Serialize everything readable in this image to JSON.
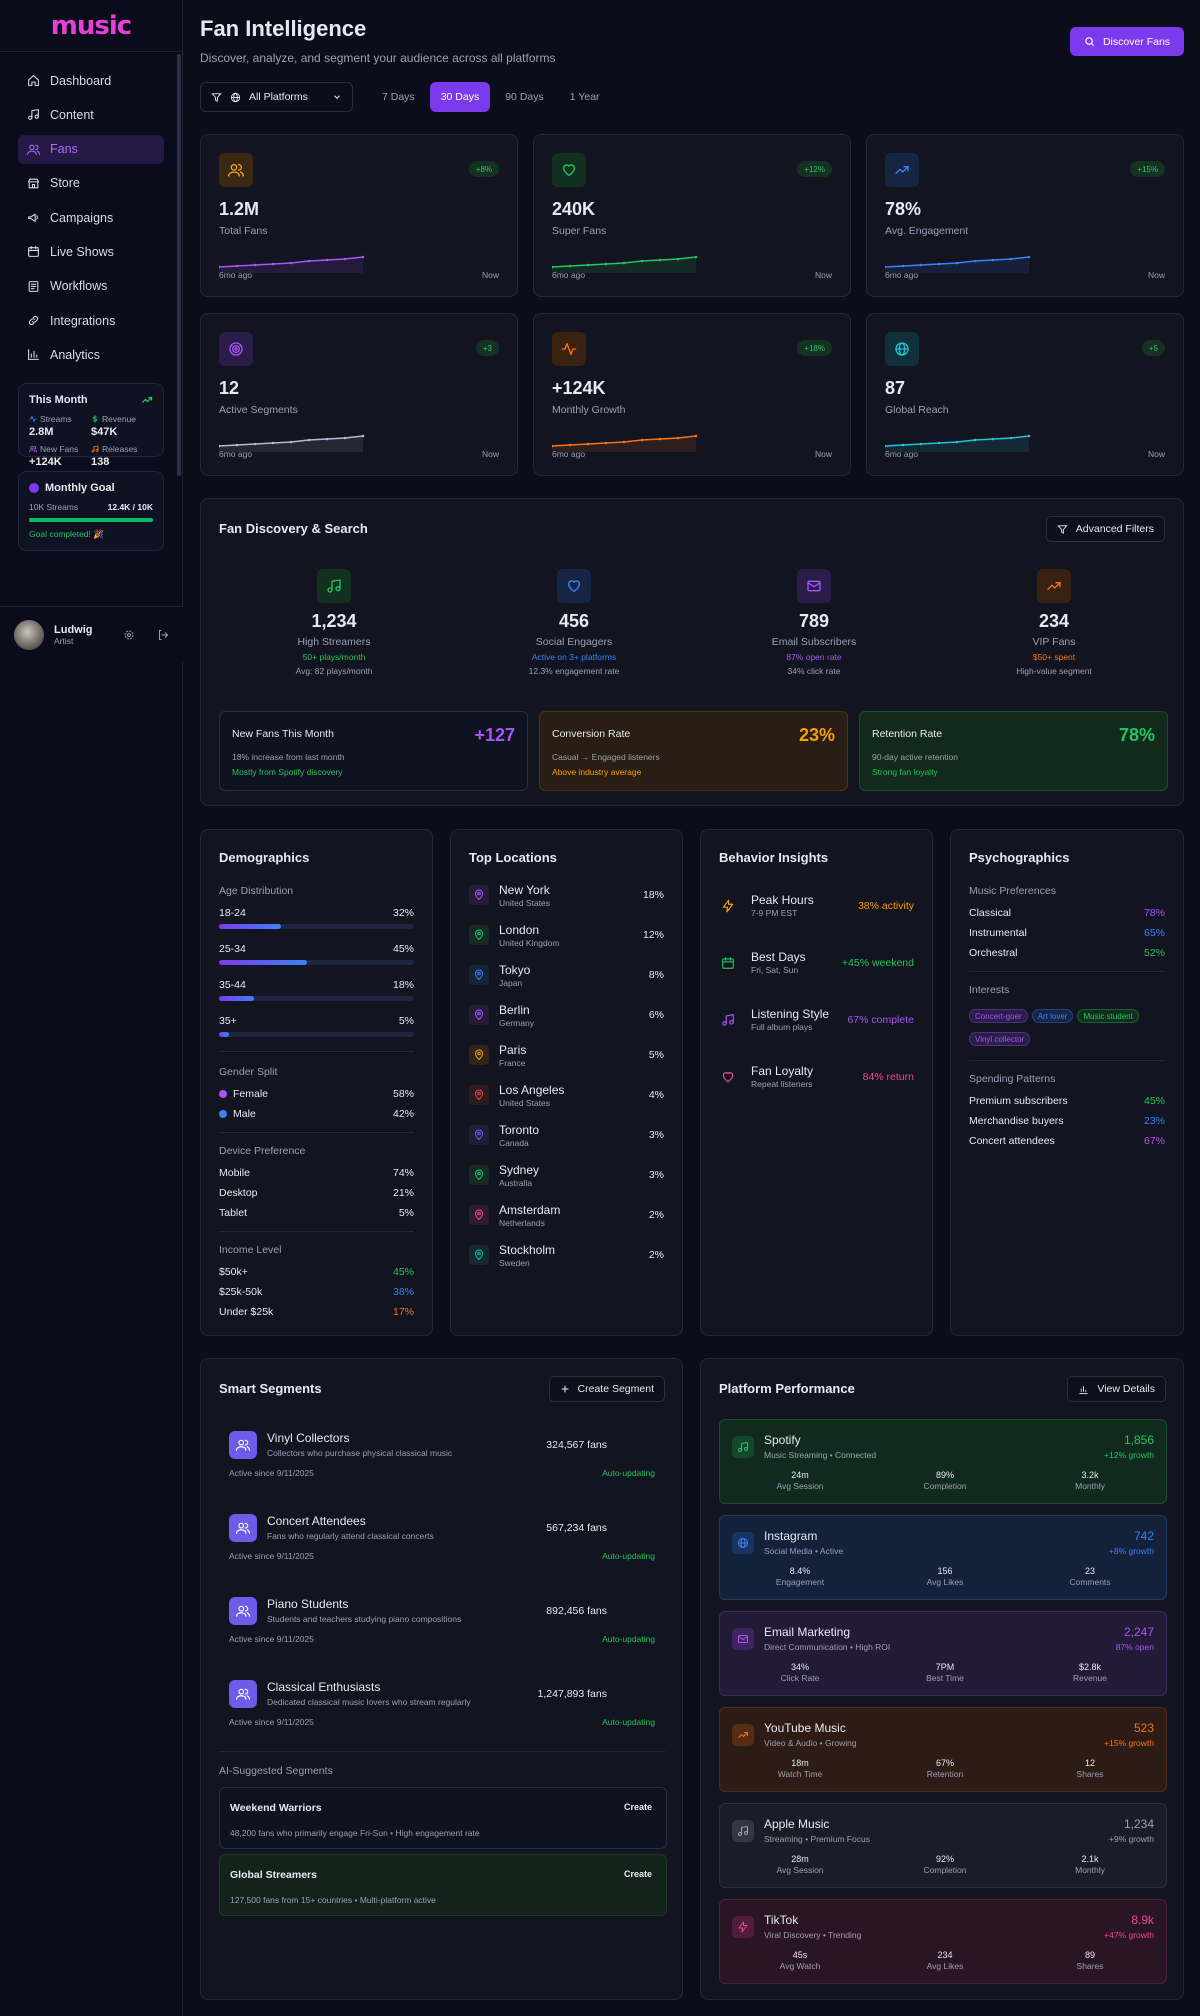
{
  "brand": "music",
  "nav": [
    {
      "label": "Dashboard",
      "icon": "home-icon"
    },
    {
      "label": "Content",
      "icon": "music-note-icon"
    },
    {
      "label": "Fans",
      "icon": "users-icon"
    },
    {
      "label": "Store",
      "icon": "store-icon"
    },
    {
      "label": "Campaigns",
      "icon": "megaphone-icon"
    },
    {
      "label": "Live Shows",
      "icon": "calendar-icon"
    },
    {
      "label": "Workflows",
      "icon": "workflow-icon"
    },
    {
      "label": "Integrations",
      "icon": "link-icon"
    },
    {
      "label": "Analytics",
      "icon": "bar-chart-icon"
    }
  ],
  "this_month": {
    "title": "This Month",
    "items": [
      {
        "label": "Streams",
        "value": "2.8M",
        "color": "#3b82f6"
      },
      {
        "label": "Revenue",
        "value": "$47K",
        "color": "#22c55e"
      },
      {
        "label": "New Fans",
        "value": "+124K",
        "color": "#a855f7"
      },
      {
        "label": "Releases",
        "value": "138",
        "color": "#f97316"
      }
    ]
  },
  "goal": {
    "title": "Monthly Goal",
    "label": "10K Streams",
    "value": "12.4K / 10K",
    "done": "Goal completed! 🎉",
    "progress": 1.0
  },
  "user": {
    "name": "Ludwig",
    "role": "Artist"
  },
  "header": {
    "title": "Fan Intelligence",
    "subtitle": "Discover, analyze, and segment your audience across all platforms",
    "discover": "Discover Fans"
  },
  "filters": {
    "platform": "All Platforms",
    "ranges": [
      "7 Days",
      "30 Days",
      "90 Days",
      "1 Year"
    ],
    "active": "30 Days"
  },
  "stats": [
    {
      "value": "1.2M",
      "label": "Total Fans",
      "badge": "+8%",
      "color": "#a855f7",
      "bg": "#3a2812",
      "iconColor": "#f5a524",
      "icon": "users-icon"
    },
    {
      "value": "240K",
      "label": "Super Fans",
      "badge": "+12%",
      "color": "#22c55e",
      "bg": "#12301f",
      "iconColor": "#22c55e",
      "icon": "heart-icon"
    },
    {
      "value": "78%",
      "label": "Avg. Engagement",
      "badge": "+15%",
      "color": "#3b82f6",
      "bg": "#172545",
      "iconColor": "#3b82f6",
      "icon": "trending-up-icon"
    },
    {
      "value": "12",
      "label": "Active Segments",
      "badge": "+3",
      "color": "#b8b6d8",
      "bg": "#2b1d4a",
      "iconColor": "#a855f7",
      "icon": "target-icon"
    },
    {
      "value": "+124K",
      "label": "Monthly Growth",
      "badge": "+18%",
      "color": "#f97316",
      "bg": "#3a2212",
      "iconColor": "#f97316",
      "icon": "activity-icon"
    },
    {
      "value": "87",
      "label": "Global Reach",
      "badge": "+5",
      "color": "#22c3d4",
      "bg": "#10303a",
      "iconColor": "#22c3d4",
      "icon": "globe-icon"
    }
  ],
  "stat_from": "6mo ago",
  "stat_to": "Now",
  "discovery": {
    "title": "Fan Discovery & Search",
    "button": "Advanced Filters",
    "items": [
      {
        "value": "1,234",
        "label": "High Streamers",
        "s1": "50+ plays/month",
        "s2": "Avg: 82 plays/month",
        "color": "#22c55e",
        "bg": "#12301f",
        "icon": "music-note-icon"
      },
      {
        "value": "456",
        "label": "Social Engagers",
        "s1": "Active on 3+ platforms",
        "s2": "12.3% engagement rate",
        "color": "#3b82f6",
        "bg": "#172545",
        "icon": "heart-icon"
      },
      {
        "value": "789",
        "label": "Email Subscribers",
        "s1": "87% open rate",
        "s2": "34% click rate",
        "color": "#a855f7",
        "bg": "#2b1d4a",
        "icon": "mail-icon"
      },
      {
        "value": "234",
        "label": "VIP Fans",
        "s1": "$50+ spent",
        "s2": "High-value segment",
        "color": "#f97316",
        "bg": "#3a2212",
        "icon": "trending-up-icon"
      }
    ],
    "metrics": [
      {
        "title": "New Fans This Month",
        "value": "+127",
        "s1": "18% increase from last month",
        "s2": "Mostly from Spotify discovery",
        "color": "#a855f7",
        "s2color": "#22c55e"
      },
      {
        "title": "Conversion Rate",
        "value": "23%",
        "s1": "Casual → Engaged listeners",
        "s2": "Above industry average",
        "color": "#f59e0b",
        "s2color": "#f59e0b"
      },
      {
        "title": "Retention Rate",
        "value": "78%",
        "s1": "90-day active retention",
        "s2": "Strong fan loyalty",
        "color": "#22c55e",
        "s2color": "#22c55e"
      }
    ]
  },
  "demographics": {
    "title": "Demographics",
    "age_label": "Age Distribution",
    "ages": [
      {
        "label": "18-24",
        "value": "32%",
        "pct": 32
      },
      {
        "label": "25-34",
        "value": "45%",
        "pct": 45
      },
      {
        "label": "35-44",
        "value": "18%",
        "pct": 18
      },
      {
        "label": "35+",
        "value": "5%",
        "pct": 5
      }
    ],
    "gender_label": "Gender Split",
    "gender": [
      {
        "label": "Female",
        "value": "58%",
        "color": "#a855f7"
      },
      {
        "label": "Male",
        "value": "42%",
        "color": "#3b82f6"
      }
    ],
    "device_label": "Device Preference",
    "devices": [
      {
        "label": "Mobile",
        "value": "74%"
      },
      {
        "label": "Desktop",
        "value": "21%"
      },
      {
        "label": "Tablet",
        "value": "5%"
      }
    ],
    "income_label": "Income Level",
    "income": [
      {
        "label": "$50k+",
        "value": "45%",
        "color": "#22c55e"
      },
      {
        "label": "$25k-50k",
        "value": "38%",
        "color": "#3b82f6"
      },
      {
        "label": "Under $25k",
        "value": "17%",
        "color": "#f97316"
      }
    ]
  },
  "locations": {
    "title": "Top Locations",
    "items": [
      {
        "city": "New York",
        "country": "United States",
        "pct": "18%",
        "color": "#a855f7"
      },
      {
        "city": "London",
        "country": "United Kingdom",
        "pct": "12%",
        "color": "#22c55e"
      },
      {
        "city": "Tokyo",
        "country": "Japan",
        "pct": "8%",
        "color": "#3b82f6"
      },
      {
        "city": "Berlin",
        "country": "Germany",
        "pct": "6%",
        "color": "#a855f7"
      },
      {
        "city": "Paris",
        "country": "France",
        "pct": "5%",
        "color": "#f59e0b"
      },
      {
        "city": "Los Angeles",
        "country": "United States",
        "pct": "4%",
        "color": "#ef4444"
      },
      {
        "city": "Toronto",
        "country": "Canada",
        "pct": "3%",
        "color": "#6366f1"
      },
      {
        "city": "Sydney",
        "country": "Australia",
        "pct": "3%",
        "color": "#22c55e"
      },
      {
        "city": "Amsterdam",
        "country": "Netherlands",
        "pct": "2%",
        "color": "#ec4899"
      },
      {
        "city": "Stockholm",
        "country": "Sweden",
        "pct": "2%",
        "color": "#14b8a6"
      }
    ]
  },
  "behavior": {
    "title": "Behavior Insights",
    "items": [
      {
        "name": "Peak Hours",
        "sub": "7-9 PM EST",
        "value": "38% activity",
        "color": "#f59e0b",
        "icon": "lightning-icon"
      },
      {
        "name": "Best Days",
        "sub": "Fri, Sat, Sun",
        "value": "+45% weekend",
        "color": "#22c55e",
        "icon": "calendar-icon"
      },
      {
        "name": "Listening Style",
        "sub": "Full album plays",
        "value": "67% complete",
        "color": "#a855f7",
        "icon": "music-note-icon"
      },
      {
        "name": "Fan Loyalty",
        "sub": "Repeat listeners",
        "value": "84% return",
        "color": "#ec4899",
        "icon": "heart-icon"
      }
    ]
  },
  "psychographics": {
    "title": "Psychographics",
    "music_label": "Music Preferences",
    "music": [
      {
        "label": "Classical",
        "value": "78%",
        "color": "#a855f7"
      },
      {
        "label": "Instrumental",
        "value": "65%",
        "color": "#3b82f6"
      },
      {
        "label": "Orchestral",
        "value": "52%",
        "color": "#22c55e"
      }
    ],
    "interests_label": "Interests",
    "interests": [
      {
        "label": "Concert-goer",
        "color": "#a855f7",
        "bg": "#2b1d4a"
      },
      {
        "label": "Art lover",
        "color": "#3b82f6",
        "bg": "#172545"
      },
      {
        "label": "Music student",
        "color": "#22c55e",
        "bg": "#12301f"
      },
      {
        "label": "Vinyl collector",
        "color": "#a855f7",
        "bg": "#2b1d4a"
      }
    ],
    "spending_label": "Spending Patterns",
    "spending": [
      {
        "label": "Premium subscribers",
        "value": "45%",
        "color": "#22c55e"
      },
      {
        "label": "Merchandise buyers",
        "value": "23%",
        "color": "#3b82f6"
      },
      {
        "label": "Concert attendees",
        "value": "67%",
        "color": "#a855f7"
      }
    ]
  },
  "segments": {
    "title": "Smart Segments",
    "button": "Create Segment",
    "items": [
      {
        "name": "Vinyl Collectors",
        "desc": "Collectors who purchase physical classical music",
        "fans": "324,567 fans",
        "since": "Active since 9/11/2025",
        "status": "Auto-updating"
      },
      {
        "name": "Concert Attendees",
        "desc": "Fans who regularly attend classical concerts",
        "fans": "567,234 fans",
        "since": "Active since 9/11/2025",
        "status": "Auto-updating"
      },
      {
        "name": "Piano Students",
        "desc": "Students and teachers studying piano compositions",
        "fans": "892,456 fans",
        "since": "Active since 9/11/2025",
        "status": "Auto-updating"
      },
      {
        "name": "Classical Enthusiasts",
        "desc": "Dedicated classical music lovers who stream regularly",
        "fans": "1,247,893 fans",
        "since": "Active since 9/11/2025",
        "status": "Auto-updating"
      }
    ],
    "ai_label": "AI-Suggested Segments",
    "ai": [
      {
        "name": "Weekend Warriors",
        "desc": "48,200 fans who primarily engage Fri-Sun • High engagement rate",
        "button": "Create"
      },
      {
        "name": "Global Streamers",
        "desc": "127,500 fans from 15+ countries • Multi-platform active",
        "button": "Create"
      }
    ]
  },
  "platforms": {
    "title": "Platform Performance",
    "button": "View Details",
    "items": [
      {
        "name": "Spotify",
        "desc": "Music Streaming • Connected",
        "value": "1,856",
        "growth": "+12% growth",
        "color": "#22c55e",
        "bg": "#112a1e",
        "border": "#1e4a32",
        "icon": "music-note-icon",
        "metrics": [
          {
            "v": "24m",
            "l": "Avg Session"
          },
          {
            "v": "89%",
            "l": "Completion"
          },
          {
            "v": "3.2k",
            "l": "Monthly"
          }
        ]
      },
      {
        "name": "Instagram",
        "desc": "Social Media • Active",
        "value": "742",
        "growth": "+8% growth",
        "color": "#3b82f6",
        "bg": "#13213a",
        "border": "#223a5e",
        "icon": "globe-icon",
        "metrics": [
          {
            "v": "8.4%",
            "l": "Engagement"
          },
          {
            "v": "156",
            "l": "Avg Likes"
          },
          {
            "v": "23",
            "l": "Comments"
          }
        ]
      },
      {
        "name": "Email Marketing",
        "desc": "Direct Communication • High ROI",
        "value": "2,247",
        "growth": "87% open",
        "color": "#a855f7",
        "bg": "#231a38",
        "border": "#3c2a5e",
        "icon": "mail-icon",
        "metrics": [
          {
            "v": "34%",
            "l": "Click Rate"
          },
          {
            "v": "7PM",
            "l": "Best Time"
          },
          {
            "v": "$2.8k",
            "l": "Revenue"
          }
        ]
      },
      {
        "name": "YouTube Music",
        "desc": "Video & Audio • Growing",
        "value": "523",
        "growth": "+15% growth",
        "color": "#f97316",
        "bg": "#2c1c15",
        "border": "#4a2c1e",
        "icon": "trending-up-icon",
        "metrics": [
          {
            "v": "18m",
            "l": "Watch Time"
          },
          {
            "v": "67%",
            "l": "Retention"
          },
          {
            "v": "12",
            "l": "Shares"
          }
        ]
      },
      {
        "name": "Apple Music",
        "desc": "Streaming • Premium Focus",
        "value": "1,234",
        "growth": "+9% growth",
        "color": "#9aa0b4",
        "bg": "#1a1c28",
        "border": "#2c2f42",
        "icon": "music-note-icon",
        "metrics": [
          {
            "v": "28m",
            "l": "Avg Session"
          },
          {
            "v": "92%",
            "l": "Completion"
          },
          {
            "v": "2.1k",
            "l": "Monthly"
          }
        ]
      },
      {
        "name": "TikTok",
        "desc": "Viral Discovery • Trending",
        "value": "8.9k",
        "growth": "+47% growth",
        "color": "#ec4899",
        "bg": "#2a1525",
        "border": "#4a2140",
        "icon": "lightning-icon",
        "metrics": [
          {
            "v": "45s",
            "l": "Avg Watch"
          },
          {
            "v": "234",
            "l": "Avg Likes"
          },
          {
            "v": "89",
            "l": "Shares"
          }
        ]
      }
    ]
  }
}
